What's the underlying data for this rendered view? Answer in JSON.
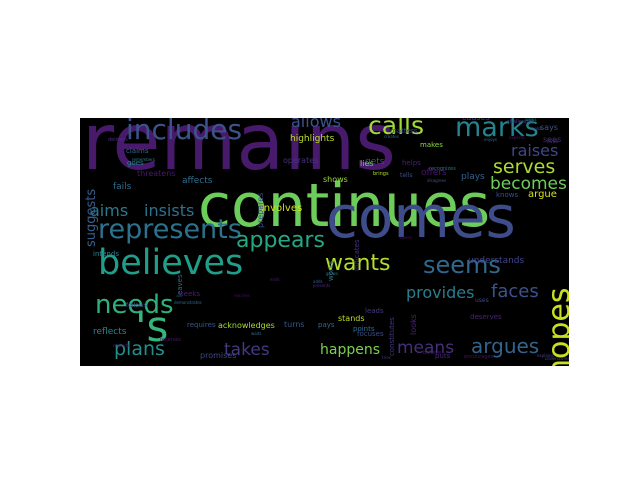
{
  "word_cloud": {
    "background": "#000000",
    "words": [
      {
        "text": "remains",
        "color": "#481a6c"
      },
      {
        "text": "continues",
        "color": "#6ccd5a"
      },
      {
        "text": "comes",
        "color": "#3e4c8a"
      },
      {
        "text": "believes",
        "color": "#1f9e89"
      },
      {
        "text": "represents",
        "color": "#2c728e"
      },
      {
        "text": "includes",
        "color": "#3b528b"
      },
      {
        "text": "'s",
        "color": "#35b779"
      },
      {
        "text": "wants",
        "color": "#b4de2c"
      },
      {
        "text": "seems",
        "color": "#31688e"
      },
      {
        "text": "hopes",
        "color": "#c8e020"
      },
      {
        "text": "needs",
        "color": "#2db27d"
      },
      {
        "text": "marks",
        "color": "#26828e"
      },
      {
        "text": "calls",
        "color": "#a0da39"
      },
      {
        "text": "appears",
        "color": "#26a784"
      },
      {
        "text": "argues",
        "color": "#33638d"
      },
      {
        "text": "means",
        "color": "#472f7d"
      },
      {
        "text": "plans",
        "color": "#21908d"
      },
      {
        "text": "aims",
        "color": "#2a788e"
      },
      {
        "text": "insists",
        "color": "#2d718e"
      },
      {
        "text": "takes",
        "color": "#443983"
      },
      {
        "text": "faces",
        "color": "#3b528b"
      },
      {
        "text": "serves",
        "color": "#addc30"
      },
      {
        "text": "allows",
        "color": "#3a548c"
      },
      {
        "text": "raises",
        "color": "#3f4788"
      },
      {
        "text": "becomes",
        "color": "#6ece58"
      },
      {
        "text": "provides",
        "color": "#287d8e"
      },
      {
        "text": "happens",
        "color": "#7ad151"
      },
      {
        "text": "suggests",
        "color": "#355f8d"
      },
      {
        "text": "involves",
        "color": "#d2e21b"
      },
      {
        "text": "highlights",
        "color": "#bddf26"
      },
      {
        "text": "argue",
        "color": "#d8e219"
      },
      {
        "text": "understands",
        "color": "#404588"
      },
      {
        "text": "acknowledges",
        "color": "#a8db34"
      },
      {
        "text": "operates",
        "color": "#46317e"
      },
      {
        "text": "shows",
        "color": "#9bd93c"
      },
      {
        "text": "gets",
        "color": "#3d4e8a"
      },
      {
        "text": "makes",
        "color": "#8fd744"
      },
      {
        "text": "affects",
        "color": "#2e6e8e"
      },
      {
        "text": "fails",
        "color": "#306a8e"
      },
      {
        "text": "offers",
        "color": "#481668"
      },
      {
        "text": "looks",
        "color": "#482475"
      },
      {
        "text": "plays",
        "color": "#34618d"
      },
      {
        "text": "stands",
        "color": "#c0df25"
      },
      {
        "text": "puts",
        "color": "#482878"
      },
      {
        "text": "knows",
        "color": "#3c4f8a"
      },
      {
        "text": "intends",
        "color": "#25848e"
      },
      {
        "text": "requires",
        "color": "#39558c"
      },
      {
        "text": "turns",
        "color": "#3a538b"
      },
      {
        "text": "works",
        "color": "#2a768e"
      },
      {
        "text": "points",
        "color": "#2c718e"
      },
      {
        "text": "reflects",
        "color": "#25858e"
      },
      {
        "text": "promises",
        "color": "#3f4889"
      },
      {
        "text": "sees",
        "color": "#472d7b"
      },
      {
        "text": "says",
        "color": "#3a548c"
      },
      {
        "text": "causes",
        "color": "#453882"
      },
      {
        "text": "lies",
        "color": "#6ccd5a"
      },
      {
        "text": "pays",
        "color": "#31688e"
      },
      {
        "text": "leads",
        "color": "#44397d"
      },
      {
        "text": "leaves",
        "color": "#2f6b8e"
      },
      {
        "text": "seeks",
        "color": "#482071"
      },
      {
        "text": "threatens",
        "color": "#481a6c"
      },
      {
        "text": "prepares",
        "color": "#3e4a89"
      },
      {
        "text": "claims",
        "color": "#2e6f8e"
      },
      {
        "text": "goes",
        "color": "#25858e"
      },
      {
        "text": "focuses",
        "color": "#3d4d8a"
      },
      {
        "text": "constitutes",
        "color": "#453781"
      },
      {
        "text": "indicates",
        "color": "#46337f"
      },
      {
        "text": "helps",
        "color": "#482173"
      },
      {
        "text": "matters",
        "color": "#3e4989"
      },
      {
        "text": "deserves",
        "color": "#482475"
      },
      {
        "text": "tells",
        "color": "#3b518b"
      },
      {
        "text": "uses",
        "color": "#3f4788"
      },
      {
        "text": "recognizes",
        "color": "#2d708e"
      },
      {
        "text": "brings",
        "color": "#b5de2b"
      },
      {
        "text": "follows",
        "color": "#3a548c"
      },
      {
        "text": "challenges",
        "color": "#414487"
      },
      {
        "text": "receives",
        "color": "#48186a"
      },
      {
        "text": "encourages",
        "color": "#481467"
      },
      {
        "text": "lives",
        "color": "#472c7a"
      },
      {
        "text": "believe",
        "color": "#481b6d"
      },
      {
        "text": "underscores",
        "color": "#3e4c8a"
      },
      {
        "text": "delivers",
        "color": "#472f7d"
      },
      {
        "text": "demonstrates",
        "color": "#2f6c8e"
      },
      {
        "text": "respects",
        "color": "#482677"
      },
      {
        "text": "disagrees",
        "color": "#3b528b"
      },
      {
        "text": "ends",
        "color": "#481f70"
      },
      {
        "text": "reaches",
        "color": "#471063"
      },
      {
        "text": "waits",
        "color": "#2c728e"
      },
      {
        "text": "adds",
        "color": "#355e8d"
      },
      {
        "text": "seeks",
        "color": "#25838e"
      },
      {
        "text": "opens",
        "color": "#471365"
      },
      {
        "text": "remembers",
        "color": "#26828e"
      },
      {
        "text": "presents",
        "color": "#472c7a"
      },
      {
        "text": "creates",
        "color": "#31678e"
      },
      {
        "text": "grows",
        "color": "#27808e"
      },
      {
        "text": "tries",
        "color": "#443983"
      },
      {
        "text": "holds",
        "color": "#3b528b"
      },
      {
        "text": "enjoys",
        "color": "#2e6e8e"
      },
      {
        "text": "expects",
        "color": "#481a6c"
      },
      {
        "text": "explains",
        "color": "#404588"
      }
    ]
  }
}
